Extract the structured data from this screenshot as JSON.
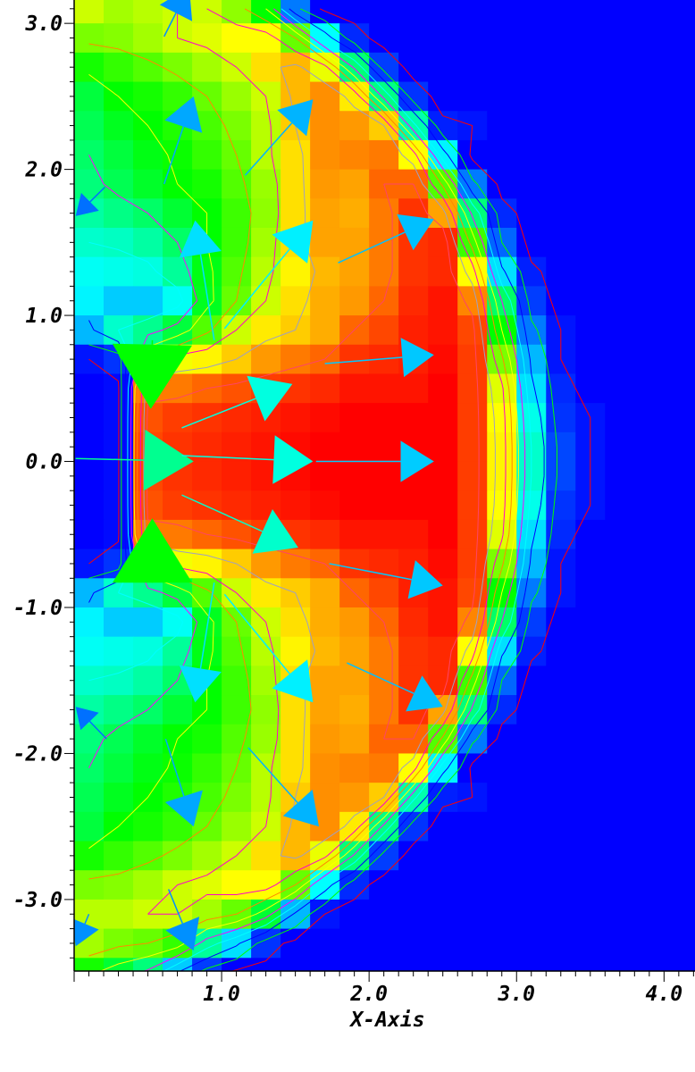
{
  "chart_data": {
    "type": "heatmap",
    "title": "",
    "xlabel": "X-Axis",
    "ylabel": "",
    "xlim": [
      0,
      4.21
    ],
    "ylim": [
      -3.49,
      3.16
    ],
    "grid": false,
    "xticks": [
      {
        "value": 1.0,
        "label": "1.0"
      },
      {
        "value": 2.0,
        "label": "2.0"
      },
      {
        "value": 3.0,
        "label": "3.0"
      },
      {
        "value": 4.0,
        "label": "4.0"
      }
    ],
    "yticks": [
      {
        "value": 3.0,
        "label": "3.0"
      },
      {
        "value": 2.0,
        "label": "2.0"
      },
      {
        "value": 1.0,
        "label": "1.0"
      },
      {
        "value": 0.0,
        "label": "0.0"
      },
      {
        "value": -1.0,
        "label": "-1.0"
      },
      {
        "value": -2.0,
        "label": "-2.0"
      },
      {
        "value": -3.0,
        "label": "-3.0"
      }
    ],
    "minor_tick_step": 0.1,
    "colormap": [
      {
        "value": 0.0,
        "color": "#0000ff"
      },
      {
        "value": 0.25,
        "color": "#00ffff"
      },
      {
        "value": 0.5,
        "color": "#00ff00"
      },
      {
        "value": 0.75,
        "color": "#ffff00"
      },
      {
        "value": 1.0,
        "color": "#ff0000"
      }
    ],
    "cells": {
      "x_start": 0.0,
      "dx": 0.2,
      "y_top": 3.2,
      "dy": 0.2
    },
    "values": [
      [
        0.7,
        0.66,
        0.68,
        0.7,
        0.7,
        0.64,
        0.5,
        0.12,
        0,
        0,
        0,
        0,
        0,
        0,
        0,
        0,
        0,
        0,
        0,
        0,
        0
      ],
      [
        0.62,
        0.63,
        0.66,
        0.7,
        0.72,
        0.75,
        0.75,
        0.6,
        0.25,
        0.04,
        0,
        0,
        0,
        0,
        0,
        0,
        0,
        0,
        0,
        0,
        0
      ],
      [
        0.52,
        0.55,
        0.58,
        0.62,
        0.66,
        0.7,
        0.78,
        0.82,
        0.73,
        0.38,
        0.06,
        0,
        0,
        0,
        0,
        0,
        0,
        0,
        0,
        0,
        0
      ],
      [
        0.44,
        0.5,
        0.52,
        0.55,
        0.6,
        0.65,
        0.7,
        0.82,
        0.86,
        0.77,
        0.37,
        0.05,
        0,
        0,
        0,
        0,
        0,
        0,
        0,
        0,
        0
      ],
      [
        0.42,
        0.47,
        0.5,
        0.53,
        0.57,
        0.62,
        0.68,
        0.8,
        0.86,
        0.85,
        0.8,
        0.33,
        0.03,
        0.02,
        0,
        0,
        0,
        0,
        0,
        0,
        0
      ],
      [
        0.4,
        0.44,
        0.48,
        0.51,
        0.55,
        0.6,
        0.68,
        0.78,
        0.86,
        0.87,
        0.88,
        0.75,
        0.24,
        0,
        0,
        0,
        0,
        0,
        0,
        0,
        0
      ],
      [
        0.38,
        0.42,
        0.46,
        0.5,
        0.52,
        0.58,
        0.65,
        0.78,
        0.85,
        0.84,
        0.9,
        0.9,
        0.58,
        0.12,
        0,
        0,
        0,
        0,
        0,
        0,
        0
      ],
      [
        0.34,
        0.37,
        0.4,
        0.45,
        0.5,
        0.56,
        0.64,
        0.78,
        0.84,
        0.83,
        0.88,
        0.95,
        0.84,
        0.38,
        0.04,
        0,
        0,
        0,
        0,
        0,
        0
      ],
      [
        0.3,
        0.31,
        0.34,
        0.4,
        0.5,
        0.56,
        0.66,
        0.78,
        0.84,
        0.84,
        0.88,
        0.95,
        0.96,
        0.56,
        0.1,
        0,
        0,
        0,
        0,
        0,
        0
      ],
      [
        0.26,
        0.27,
        0.28,
        0.35,
        0.48,
        0.58,
        0.68,
        0.76,
        0.82,
        0.84,
        0.88,
        0.95,
        0.96,
        0.75,
        0.22,
        0.03,
        0,
        0,
        0,
        0,
        0
      ],
      [
        0.24,
        0.2,
        0.2,
        0.26,
        0.47,
        0.6,
        0.7,
        0.78,
        0.83,
        0.85,
        0.9,
        0.96,
        0.98,
        0.87,
        0.4,
        0.06,
        0,
        0,
        0,
        0,
        0
      ],
      [
        0.18,
        0.3,
        0.36,
        0.44,
        0.58,
        0.7,
        0.77,
        0.8,
        0.83,
        0.9,
        0.93,
        0.97,
        0.98,
        0.93,
        0.5,
        0.12,
        0.02,
        0,
        0,
        0,
        0
      ],
      [
        0.02,
        0.05,
        0.6,
        0.74,
        0.76,
        0.8,
        0.85,
        0.88,
        0.9,
        0.95,
        0.96,
        0.97,
        0.99,
        0.94,
        0.62,
        0.18,
        0.02,
        0,
        0,
        0,
        0
      ],
      [
        0,
        0.01,
        0.88,
        0.88,
        0.9,
        0.92,
        0.94,
        0.95,
        0.96,
        0.98,
        0.98,
        0.98,
        1,
        0.94,
        0.72,
        0.22,
        0.04,
        0,
        0,
        0,
        0
      ],
      [
        0,
        0.01,
        0.92,
        0.94,
        0.95,
        0.96,
        0.97,
        0.98,
        0.99,
        1,
        1,
        1,
        1,
        0.94,
        0.75,
        0.27,
        0.05,
        0.02,
        0,
        0,
        0
      ],
      [
        0,
        0.01,
        0.93,
        0.95,
        0.96,
        0.97,
        0.98,
        0.99,
        1,
        1,
        1,
        1,
        1,
        0.94,
        0.76,
        0.3,
        0.07,
        0.02,
        0,
        0,
        0
      ],
      [
        0,
        0.01,
        0.93,
        0.95,
        0.96,
        0.97,
        0.98,
        0.99,
        1,
        1,
        1,
        1,
        1,
        0.94,
        0.76,
        0.3,
        0.07,
        0.02,
        0,
        0,
        0
      ],
      [
        0,
        0.01,
        0.92,
        0.94,
        0.95,
        0.96,
        0.97,
        0.98,
        0.99,
        1,
        1,
        1,
        1,
        0.94,
        0.75,
        0.27,
        0.05,
        0.02,
        0,
        0,
        0
      ],
      [
        0,
        0.01,
        0.88,
        0.88,
        0.9,
        0.92,
        0.94,
        0.95,
        0.96,
        0.98,
        0.98,
        0.98,
        1,
        0.94,
        0.72,
        0.22,
        0.04,
        0,
        0,
        0,
        0
      ],
      [
        0.02,
        0.05,
        0.6,
        0.74,
        0.76,
        0.8,
        0.85,
        0.88,
        0.9,
        0.95,
        0.96,
        0.97,
        0.99,
        0.94,
        0.62,
        0.18,
        0.02,
        0,
        0,
        0,
        0
      ],
      [
        0.18,
        0.3,
        0.36,
        0.44,
        0.58,
        0.7,
        0.77,
        0.8,
        0.83,
        0.9,
        0.93,
        0.97,
        0.98,
        0.93,
        0.5,
        0.12,
        0.02,
        0,
        0,
        0,
        0
      ],
      [
        0.24,
        0.2,
        0.2,
        0.26,
        0.47,
        0.6,
        0.7,
        0.78,
        0.83,
        0.85,
        0.9,
        0.96,
        0.98,
        0.87,
        0.4,
        0.06,
        0,
        0,
        0,
        0,
        0
      ],
      [
        0.26,
        0.27,
        0.28,
        0.35,
        0.48,
        0.58,
        0.68,
        0.76,
        0.82,
        0.84,
        0.88,
        0.95,
        0.96,
        0.75,
        0.22,
        0.03,
        0,
        0,
        0,
        0,
        0
      ],
      [
        0.3,
        0.31,
        0.34,
        0.4,
        0.5,
        0.56,
        0.66,
        0.78,
        0.84,
        0.84,
        0.88,
        0.95,
        0.96,
        0.56,
        0.1,
        0,
        0,
        0,
        0,
        0,
        0
      ],
      [
        0.34,
        0.37,
        0.4,
        0.45,
        0.5,
        0.56,
        0.64,
        0.78,
        0.84,
        0.83,
        0.88,
        0.95,
        0.84,
        0.38,
        0.04,
        0,
        0,
        0,
        0,
        0,
        0
      ],
      [
        0.38,
        0.42,
        0.46,
        0.5,
        0.52,
        0.58,
        0.65,
        0.78,
        0.85,
        0.84,
        0.9,
        0.9,
        0.58,
        0.12,
        0,
        0,
        0,
        0,
        0,
        0,
        0
      ],
      [
        0.4,
        0.44,
        0.48,
        0.51,
        0.55,
        0.6,
        0.68,
        0.78,
        0.86,
        0.87,
        0.88,
        0.75,
        0.24,
        0,
        0,
        0,
        0,
        0,
        0,
        0,
        0
      ],
      [
        0.42,
        0.47,
        0.5,
        0.53,
        0.57,
        0.62,
        0.68,
        0.8,
        0.86,
        0.85,
        0.8,
        0.33,
        0.03,
        0.02,
        0,
        0,
        0,
        0,
        0,
        0,
        0
      ],
      [
        0.44,
        0.5,
        0.52,
        0.55,
        0.6,
        0.65,
        0.7,
        0.82,
        0.86,
        0.77,
        0.37,
        0.05,
        0,
        0,
        0,
        0,
        0,
        0,
        0,
        0,
        0
      ],
      [
        0.52,
        0.55,
        0.58,
        0.62,
        0.66,
        0.7,
        0.78,
        0.82,
        0.73,
        0.38,
        0.06,
        0,
        0,
        0,
        0,
        0,
        0,
        0,
        0,
        0,
        0
      ],
      [
        0.62,
        0.63,
        0.66,
        0.7,
        0.72,
        0.75,
        0.75,
        0.6,
        0.25,
        0.04,
        0,
        0,
        0,
        0,
        0,
        0,
        0,
        0,
        0,
        0,
        0
      ],
      [
        0.68,
        0.68,
        0.7,
        0.7,
        0.66,
        0.6,
        0.45,
        0.18,
        0.02,
        0,
        0,
        0,
        0,
        0,
        0,
        0,
        0,
        0,
        0,
        0,
        0
      ],
      [
        0.66,
        0.62,
        0.6,
        0.55,
        0.35,
        0.22,
        0.05,
        0,
        0,
        0,
        0,
        0,
        0,
        0,
        0,
        0,
        0,
        0,
        0,
        0,
        0
      ],
      [
        0.52,
        0.45,
        0.38,
        0.2,
        0.06,
        0,
        0,
        0,
        0,
        0,
        0,
        0,
        0,
        0,
        0,
        0,
        0,
        0,
        0,
        0,
        0
      ]
    ],
    "contours": {
      "levels": [
        0.02,
        0.1,
        0.2,
        0.3,
        0.4,
        0.5,
        0.6,
        0.7,
        0.8,
        0.9
      ],
      "colors": [
        "#ff0000",
        "#00ff00",
        "#0000ff",
        "#00ffff",
        "#ff00ff",
        "#ffff00",
        "#ff8800",
        "#ff00cc",
        "#a0a0c0",
        "#ff4466"
      ]
    },
    "vectors": [
      {
        "x": 0.61,
        "y": 2.91,
        "x2": 0.78,
        "y2": 3.25,
        "magnitude": 0.3,
        "color": "#0090ff"
      },
      {
        "x": 0.61,
        "y": 1.9,
        "x2": 0.81,
        "y2": 2.5,
        "magnitude": 0.35,
        "color": "#00a8ff"
      },
      {
        "x": 1.16,
        "y": 1.96,
        "x2": 1.62,
        "y2": 2.48,
        "magnitude": 0.35,
        "color": "#00b4ff"
      },
      {
        "x": 0.21,
        "y": 1.88,
        "x2": 0.01,
        "y2": 1.68,
        "magnitude": 0.12,
        "color": "#0070ff"
      },
      {
        "x": 0.95,
        "y": 0.83,
        "x2": 0.82,
        "y2": 1.65,
        "magnitude": 0.4,
        "color": "#00e0ff"
      },
      {
        "x": 1.02,
        "y": 0.91,
        "x2": 1.62,
        "y2": 1.65,
        "magnitude": 0.45,
        "color": "#00f0ff"
      },
      {
        "x": 1.79,
        "y": 1.36,
        "x2": 2.44,
        "y2": 1.66,
        "magnitude": 0.35,
        "color": "#00c0ff"
      },
      {
        "x": 0.53,
        "y": 0.83,
        "x2": 0.52,
        "y2": 0.36,
        "magnitude": 1.0,
        "color": "#00ff00"
      },
      {
        "x": 0.73,
        "y": 0.23,
        "x2": 1.48,
        "y2": 0.53,
        "magnitude": 0.5,
        "color": "#00ffe0"
      },
      {
        "x": 1.7,
        "y": 0.67,
        "x2": 2.44,
        "y2": 0.73,
        "magnitude": 0.35,
        "color": "#00c8ff"
      },
      {
        "x": 0.01,
        "y": 0.02,
        "x2": 0.81,
        "y2": 0.0,
        "magnitude": 0.7,
        "color": "#00ff90"
      },
      {
        "x": 0.73,
        "y": 0.04,
        "x2": 1.62,
        "y2": 0.0,
        "magnitude": 0.5,
        "color": "#00ffe0"
      },
      {
        "x": 1.64,
        "y": 0.0,
        "x2": 2.44,
        "y2": 0.0,
        "magnitude": 0.38,
        "color": "#00ccff"
      },
      {
        "x": 0.53,
        "y": -0.79,
        "x2": 0.53,
        "y2": -0.39,
        "magnitude": 1.0,
        "color": "#00ff00"
      },
      {
        "x": 0.73,
        "y": -0.23,
        "x2": 1.52,
        "y2": -0.59,
        "magnitude": 0.5,
        "color": "#00ffcc"
      },
      {
        "x": 1.73,
        "y": -0.7,
        "x2": 2.5,
        "y2": -0.85,
        "magnitude": 0.35,
        "color": "#00c8ff"
      },
      {
        "x": 1.85,
        "y": -1.38,
        "x2": 2.5,
        "y2": -1.68,
        "magnitude": 0.35,
        "color": "#00c0ff"
      },
      {
        "x": 1.18,
        "y": -1.96,
        "x2": 1.66,
        "y2": -2.5,
        "magnitude": 0.35,
        "color": "#00b4ff"
      },
      {
        "x": 0.62,
        "y": -1.9,
        "x2": 0.81,
        "y2": -2.5,
        "magnitude": 0.35,
        "color": "#00a8ff"
      },
      {
        "x": 1.02,
        "y": -0.91,
        "x2": 1.62,
        "y2": -1.65,
        "magnitude": 0.45,
        "color": "#00f0ff"
      },
      {
        "x": 0.95,
        "y": -0.83,
        "x2": 0.82,
        "y2": -1.65,
        "magnitude": 0.4,
        "color": "#00e0ff"
      },
      {
        "x": 0.22,
        "y": -1.9,
        "x2": 0.01,
        "y2": -1.68,
        "magnitude": 0.12,
        "color": "#0070ff"
      },
      {
        "x": 0.64,
        "y": -2.93,
        "x2": 0.81,
        "y2": -3.35,
        "magnitude": 0.3,
        "color": "#0090ff"
      },
      {
        "x": 0.1,
        "y": -3.1,
        "x2": 0.01,
        "y2": -3.32,
        "magnitude": 0.2,
        "color": "#0090ff"
      }
    ]
  }
}
